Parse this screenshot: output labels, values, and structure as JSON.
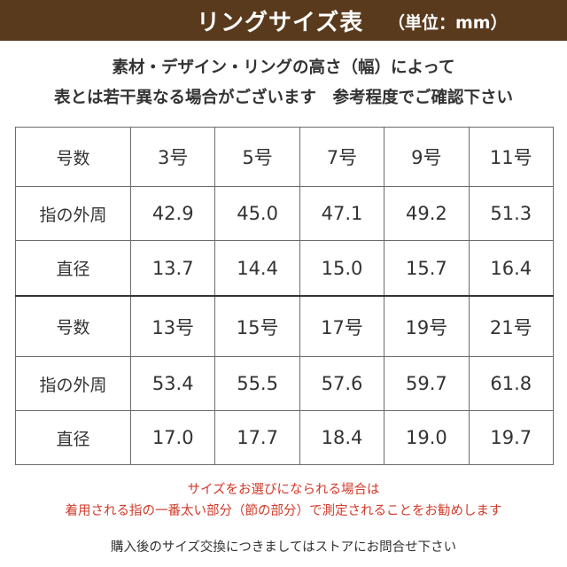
{
  "header": {
    "title": "リングサイズ表",
    "unit": "（単位：mm）"
  },
  "notes": {
    "line1": "素材・デザイン・リングの高さ（幅）によって",
    "line2": "表とは若干異なる場合がございます　参考程度でご確認下さい"
  },
  "table": {
    "blocks": [
      {
        "label_size": "号数",
        "label_circ": "指の外周",
        "label_diam": "直径",
        "sizes": [
          "3号",
          "5号",
          "7号",
          "9号",
          "11号"
        ],
        "circumference": [
          "42.9",
          "45.0",
          "47.1",
          "49.2",
          "51.3"
        ],
        "diameter": [
          "13.7",
          "14.4",
          "15.0",
          "15.7",
          "16.4"
        ]
      },
      {
        "label_size": "号数",
        "label_circ": "指の外周",
        "label_diam": "直径",
        "sizes": [
          "13号",
          "15号",
          "17号",
          "19号",
          "21号"
        ],
        "circumference": [
          "53.4",
          "55.5",
          "57.6",
          "59.7",
          "61.8"
        ],
        "diameter": [
          "17.0",
          "17.7",
          "18.4",
          "19.0",
          "19.7"
        ]
      }
    ]
  },
  "advice": {
    "line1": "サイズをお選びになられる場合は",
    "line2": "着用される指の一番太い部分（節の部分）で測定されることをお勧めします"
  },
  "footer": {
    "text": "購入後のサイズ交換につきましてはストアにお問合せ下さい"
  },
  "colors": {
    "header_bg": "#5a3a1d",
    "advice_text": "#d03a2a"
  }
}
